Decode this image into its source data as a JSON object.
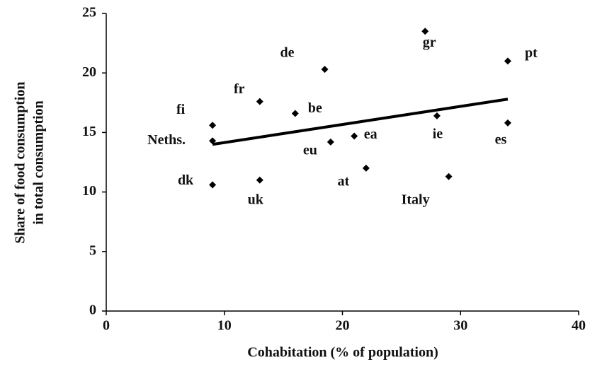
{
  "chart_data": {
    "type": "scatter",
    "xlabel": "Cohabitation (% of population)",
    "ylabel": [
      "Share of food consumption",
      "in total consumption"
    ],
    "xlim": [
      0,
      40
    ],
    "xticks": [
      0,
      10,
      20,
      30,
      40
    ],
    "ylim": [
      0,
      25
    ],
    "yticks": [
      0,
      5,
      10,
      15,
      20,
      25
    ],
    "color": "#000000",
    "series": [
      {
        "categories": [
          "fi",
          "Neths.",
          "dk",
          "fr",
          "uk",
          "be",
          "de",
          "eu",
          "ea",
          "at",
          "gr",
          "ie",
          "Italy",
          "pt",
          "es"
        ],
        "x": [
          9,
          9,
          9,
          13,
          13,
          16,
          18.5,
          19,
          21,
          22,
          27,
          28,
          29,
          34,
          34
        ],
        "values": [
          15.6,
          14.3,
          10.6,
          17.6,
          11.0,
          16.6,
          20.3,
          14.2,
          14.7,
          12.0,
          23.5,
          16.4,
          11.3,
          21.0,
          15.8
        ]
      }
    ],
    "trendline": {
      "x": [
        9,
        34
      ],
      "values": [
        14.0,
        17.8
      ]
    }
  }
}
